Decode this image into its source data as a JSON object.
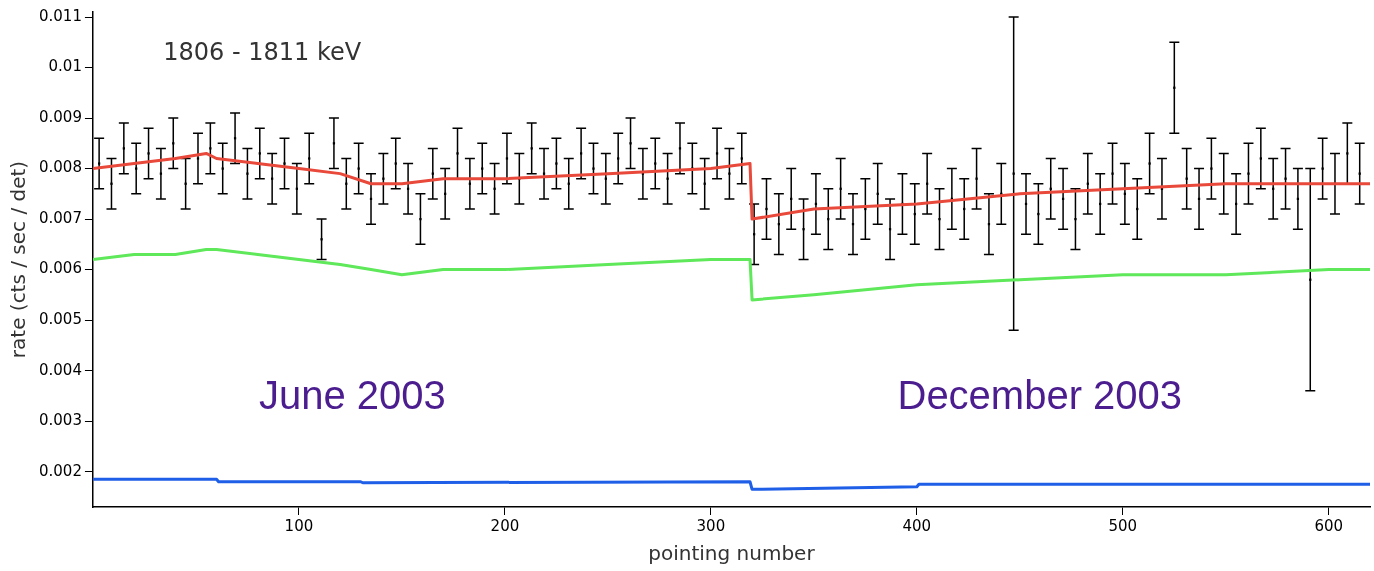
{
  "chart_data": {
    "type": "scatter",
    "xlabel": "pointing number",
    "ylabel": "rate (cts / sec / det)",
    "annotations": [
      "1806 - 1811 keV",
      "June 2003",
      "December 2003"
    ],
    "xlim": [
      0,
      620
    ],
    "ylim": [
      0.0013,
      0.0111
    ],
    "xticks": [
      100,
      200,
      300,
      400,
      500,
      600
    ],
    "yticks": [
      0.002,
      0.003,
      0.004,
      0.005,
      0.006,
      0.007,
      0.008,
      0.009,
      0.01,
      0.011
    ],
    "grid": false,
    "legend": false,
    "x": [
      3,
      9,
      15,
      21,
      27,
      33,
      39,
      45,
      51,
      57,
      63,
      69,
      75,
      81,
      87,
      93,
      99,
      105,
      111,
      117,
      123,
      129,
      135,
      141,
      147,
      153,
      159,
      165,
      171,
      177,
      183,
      189,
      195,
      201,
      207,
      213,
      219,
      225,
      231,
      237,
      243,
      249,
      255,
      261,
      267,
      273,
      279,
      285,
      291,
      297,
      303,
      309,
      315,
      321,
      327,
      333,
      339,
      345,
      351,
      357,
      363,
      369,
      375,
      381,
      387,
      393,
      399,
      405,
      411,
      417,
      423,
      429,
      435,
      441,
      447,
      453,
      459,
      465,
      471,
      477,
      483,
      489,
      495,
      501,
      507,
      513,
      519,
      525,
      531,
      537,
      543,
      549,
      555,
      561,
      567,
      573,
      579,
      585,
      591,
      597,
      603,
      609,
      615
    ],
    "series": [
      {
        "color": "#000000",
        "marker": "square",
        "values": [
          0.0081,
          0.0077,
          0.0084,
          0.008,
          0.0083,
          0.0079,
          0.0085,
          0.0077,
          0.0082,
          0.0084,
          0.008,
          0.0086,
          0.0079,
          0.0083,
          0.0078,
          0.0081,
          0.0076,
          0.0082,
          0.0066,
          0.0085,
          0.0077,
          0.008,
          0.0074,
          0.0078,
          0.0081,
          0.0076,
          0.007,
          0.0079,
          0.0075,
          0.0083,
          0.0077,
          0.008,
          0.0076,
          0.0082,
          0.0078,
          0.0084,
          0.0079,
          0.0081,
          0.0077,
          0.0083,
          0.008,
          0.0078,
          0.0082,
          0.0085,
          0.0079,
          0.0081,
          0.0078,
          0.0084,
          0.008,
          0.0077,
          0.0083,
          0.0079,
          0.0082,
          0.0067,
          0.0072,
          0.0069,
          0.0074,
          0.0068,
          0.0073,
          0.007,
          0.0076,
          0.0069,
          0.0072,
          0.0075,
          0.0068,
          0.0073,
          0.0071,
          0.0077,
          0.007,
          0.0074,
          0.0072,
          0.0078,
          0.0069,
          0.0075,
          0.0079,
          0.0073,
          0.0071,
          0.0076,
          0.0074,
          0.007,
          0.0077,
          0.0073,
          0.0079,
          0.0075,
          0.0072,
          0.0081,
          0.0076,
          0.0096,
          0.0078,
          0.0074,
          0.008,
          0.0077,
          0.0073,
          0.0079,
          0.0082,
          0.0076,
          0.0078,
          0.0074,
          0.0058,
          0.008,
          0.0077,
          0.0083,
          0.0079
        ],
        "errors": [
          0.0005,
          0.0005,
          0.0005,
          0.0005,
          0.0005,
          0.0005,
          0.0005,
          0.0005,
          0.0005,
          0.0005,
          0.0005,
          0.0005,
          0.0005,
          0.0005,
          0.0005,
          0.0005,
          0.0005,
          0.0005,
          0.0004,
          0.0005,
          0.0005,
          0.0005,
          0.0005,
          0.0005,
          0.0005,
          0.0005,
          0.0005,
          0.0005,
          0.0005,
          0.0005,
          0.0005,
          0.0005,
          0.0005,
          0.0005,
          0.0005,
          0.0005,
          0.0005,
          0.0005,
          0.0005,
          0.0005,
          0.0005,
          0.0005,
          0.0005,
          0.0005,
          0.0005,
          0.0005,
          0.0005,
          0.0005,
          0.0005,
          0.0005,
          0.0005,
          0.0005,
          0.0005,
          0.0006,
          0.0006,
          0.0006,
          0.0006,
          0.0006,
          0.0006,
          0.0006,
          0.0006,
          0.0006,
          0.0006,
          0.0006,
          0.0006,
          0.0006,
          0.0006,
          0.0006,
          0.0006,
          0.0006,
          0.0006,
          0.0006,
          0.0006,
          0.0006,
          0.0031,
          0.0006,
          0.0006,
          0.0006,
          0.0006,
          0.0006,
          0.0006,
          0.0006,
          0.0006,
          0.0006,
          0.0006,
          0.0006,
          0.0006,
          0.0009,
          0.0006,
          0.0006,
          0.0006,
          0.0006,
          0.0006,
          0.0006,
          0.0006,
          0.0006,
          0.0006,
          0.0006,
          0.0022,
          0.0006,
          0.0006,
          0.0006,
          0.0006
        ]
      },
      {
        "type": "line",
        "marker": "none",
        "color": "#e8493a",
        "x": [
          0,
          20,
          40,
          55,
          60,
          80,
          100,
          120,
          135,
          150,
          170,
          200,
          250,
          300,
          319,
          320,
          350,
          400,
          450,
          500,
          550,
          600,
          620
        ],
        "values": [
          0.008,
          0.0081,
          0.0082,
          0.0083,
          0.0082,
          0.0081,
          0.008,
          0.0079,
          0.0077,
          0.0077,
          0.0078,
          0.0078,
          0.0079,
          0.008,
          0.0081,
          0.007,
          0.0072,
          0.0073,
          0.0075,
          0.0076,
          0.0077,
          0.0077,
          0.0077
        ]
      },
      {
        "type": "line",
        "marker": "none",
        "color": "#5ee85a",
        "x": [
          0,
          20,
          40,
          55,
          60,
          80,
          100,
          120,
          135,
          150,
          170,
          200,
          250,
          300,
          319,
          320,
          350,
          400,
          450,
          500,
          550,
          600,
          620
        ],
        "values": [
          0.0062,
          0.0063,
          0.0063,
          0.0064,
          0.0064,
          0.0063,
          0.0062,
          0.0061,
          0.006,
          0.0059,
          0.006,
          0.006,
          0.0061,
          0.0062,
          0.0062,
          0.0054,
          0.0055,
          0.0057,
          0.0058,
          0.0059,
          0.0059,
          0.006,
          0.006
        ]
      },
      {
        "type": "line",
        "marker": "none",
        "color": "#1f5fe8",
        "x": [
          0,
          60,
          61,
          130,
          131,
          319,
          320,
          400,
          401,
          620
        ],
        "values": [
          0.00185,
          0.00185,
          0.0018,
          0.0018,
          0.00178,
          0.0018,
          0.00165,
          0.0017,
          0.00175,
          0.00175
        ]
      }
    ]
  }
}
